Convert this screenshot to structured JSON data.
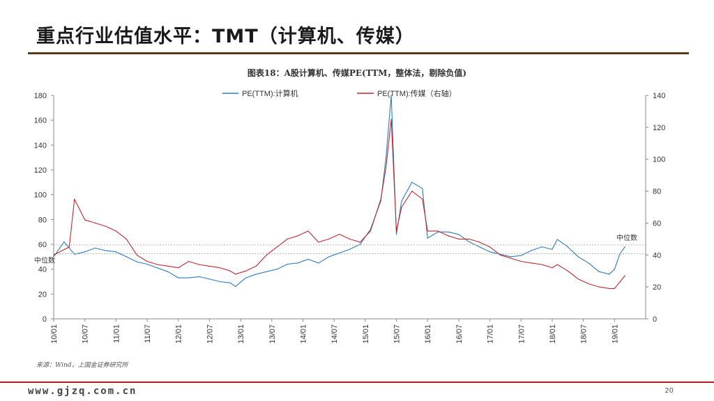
{
  "slide": {
    "title": "重点行业估值水平：TMT（计算机、传媒）",
    "caption": "图表18：A股计算机、传媒PE(TTM，整体法，剔除负值)",
    "source": "来源：Wind，上国金证券研究所",
    "website": "www.gjzq.com.cn",
    "page_number": "20"
  },
  "chart_data": {
    "type": "line",
    "title": "图表18：A股计算机、传媒PE(TTM，整体法，剔除负值)",
    "x_tick_labels": [
      "10/01",
      "10/07",
      "11/01",
      "11/07",
      "12/01",
      "12/07",
      "13/01",
      "13/07",
      "14/01",
      "14/07",
      "15/01",
      "15/07",
      "16/01",
      "16/07",
      "17/01",
      "17/07",
      "18/01",
      "18/07",
      "19/01"
    ],
    "left_axis": {
      "range": [
        0,
        180
      ],
      "ticks": [
        "0",
        "20",
        "40",
        "60",
        "80",
        "100",
        "120",
        "140",
        "160",
        "180"
      ]
    },
    "right_axis": {
      "range": [
        0,
        140
      ],
      "ticks": [
        "0",
        "20",
        "40",
        "60",
        "80",
        "100",
        "120",
        "140"
      ]
    },
    "grid": false,
    "legend_position": "top",
    "series": [
      {
        "name": "PE(TTM):计算机",
        "axis": "left",
        "color": "#2e7bbf",
        "x": [
          "2010-01",
          "2010-03",
          "2010-05",
          "2010-07",
          "2010-09",
          "2010-11",
          "2011-01",
          "2011-03",
          "2011-05",
          "2011-07",
          "2011-09",
          "2011-11",
          "2012-01",
          "2012-03",
          "2012-05",
          "2012-07",
          "2012-09",
          "2012-11",
          "2012-12",
          "2013-02",
          "2013-04",
          "2013-06",
          "2013-08",
          "2013-10",
          "2013-12",
          "2014-02",
          "2014-04",
          "2014-06",
          "2014-08",
          "2014-10",
          "2014-12",
          "2015-02",
          "2015-04",
          "2015-05",
          "2015-06",
          "2015-07",
          "2015-08",
          "2015-10",
          "2015-12",
          "2016-01",
          "2016-03",
          "2016-05",
          "2016-07",
          "2016-09",
          "2016-11",
          "2017-01",
          "2017-03",
          "2017-05",
          "2017-07",
          "2017-09",
          "2017-11",
          "2018-01",
          "2018-02",
          "2018-04",
          "2018-06",
          "2018-08",
          "2018-10",
          "2018-12",
          "2019-01",
          "2019-02",
          "2019-03"
        ],
        "values": [
          50,
          62,
          52,
          54,
          57,
          55,
          54,
          50,
          46,
          44,
          41,
          38,
          33,
          33,
          34,
          32,
          30,
          29,
          26,
          33,
          36,
          38,
          40,
          44,
          45,
          48,
          45,
          50,
          53,
          56,
          60,
          72,
          95,
          130,
          180,
          68,
          95,
          110,
          105,
          65,
          70,
          70,
          68,
          62,
          58,
          54,
          52,
          50,
          51,
          55,
          58,
          56,
          64,
          58,
          50,
          45,
          38,
          36,
          40,
          52,
          58
        ]
      },
      {
        "name": "PE(TTM):传媒（右轴）",
        "axis": "right",
        "color": "#c0282d",
        "x": [
          "2010-01",
          "2010-04",
          "2010-05",
          "2010-07",
          "2010-09",
          "2010-11",
          "2011-01",
          "2011-03",
          "2011-05",
          "2011-07",
          "2011-09",
          "2011-11",
          "2012-01",
          "2012-03",
          "2012-05",
          "2012-07",
          "2012-09",
          "2012-11",
          "2012-12",
          "2013-02",
          "2013-04",
          "2013-06",
          "2013-08",
          "2013-10",
          "2013-12",
          "2014-02",
          "2014-04",
          "2014-06",
          "2014-08",
          "2014-10",
          "2014-12",
          "2015-02",
          "2015-04",
          "2015-05",
          "2015-06",
          "2015-07",
          "2015-08",
          "2015-10",
          "2015-12",
          "2016-01",
          "2016-03",
          "2016-05",
          "2016-07",
          "2016-09",
          "2016-11",
          "2017-01",
          "2017-03",
          "2017-05",
          "2017-07",
          "2017-09",
          "2017-11",
          "2018-01",
          "2018-02",
          "2018-04",
          "2018-06",
          "2018-08",
          "2018-10",
          "2018-12",
          "2019-01",
          "2019-02",
          "2019-03"
        ],
        "values": [
          40,
          45,
          75,
          62,
          60,
          58,
          55,
          50,
          40,
          36,
          34,
          33,
          32,
          36,
          34,
          33,
          32,
          30,
          28,
          30,
          33,
          40,
          45,
          50,
          52,
          55,
          48,
          50,
          53,
          50,
          48,
          55,
          75,
          95,
          125,
          55,
          70,
          80,
          75,
          55,
          55,
          52,
          50,
          50,
          48,
          45,
          40,
          38,
          36,
          35,
          34,
          32,
          34,
          30,
          25,
          22,
          20,
          19,
          19,
          23,
          27
        ]
      }
    ],
    "annotations": [
      {
        "text": "中位数",
        "axis": "left",
        "value": 52.5
      },
      {
        "text": "中位数",
        "axis": "right",
        "value": 46.3
      }
    ]
  }
}
